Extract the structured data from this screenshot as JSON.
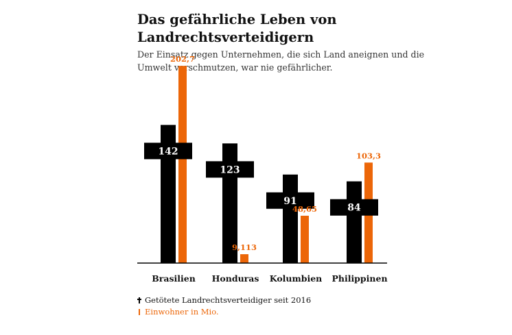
{
  "title": "Das gefährliche Leben von Landrechtsverteidigern",
  "subtitle": "Der Einsatz gegen Unternehmen, die sich Land aneignen und die Umwelt verschmutzen, war nie gefährlicher.",
  "legend": {
    "deaths_label": "Getötete Landrechtsverteidiger seit 2016",
    "population_label": "Einwohner in Mio."
  },
  "colors": {
    "deaths": "#000000",
    "population": "#ec6608",
    "label_on_dark": "#ffffff",
    "text": "#111111"
  },
  "icons": {
    "deaths": "cross-icon",
    "population": "orange-bar-icon"
  },
  "chart_data": {
    "type": "bar",
    "categories": [
      "Brasilien",
      "Honduras",
      "Kolumbien",
      "Philippinen"
    ],
    "series": [
      {
        "name": "Getötete Landrechtsverteidiger seit 2016",
        "values": [
          142,
          123,
          91,
          84
        ],
        "labels": [
          "142",
          "123",
          "91",
          "84"
        ]
      },
      {
        "name": "Einwohner in Mio.",
        "values": [
          202.7,
          9.113,
          48.65,
          103.3
        ],
        "labels": [
          "202,7",
          "9,113",
          "48,65",
          "103,3"
        ]
      }
    ],
    "ylim": [
      0,
      215
    ],
    "grid": false,
    "legend_placement": "bottom-left"
  }
}
